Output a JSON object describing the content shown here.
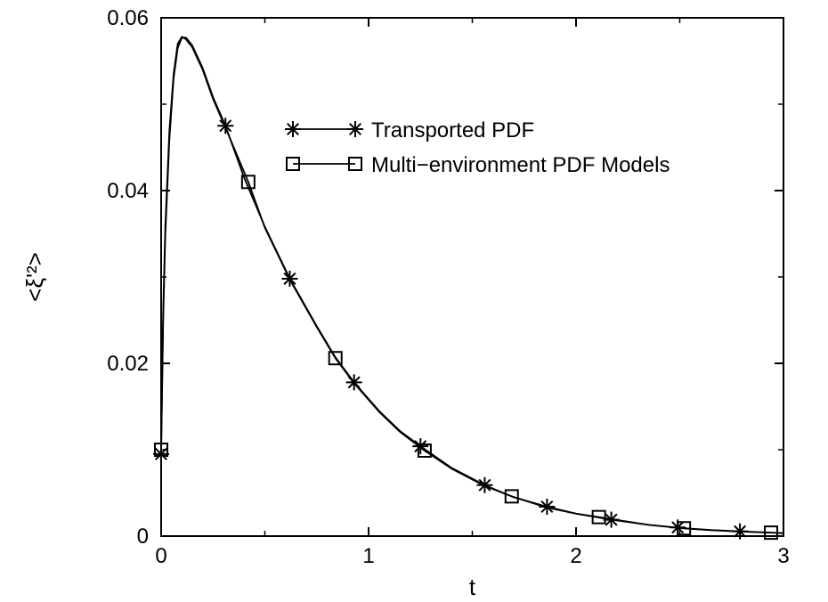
{
  "chart_data": {
    "type": "line",
    "xlabel": "t",
    "ylabel": "<ξ'²>",
    "xlim": [
      0,
      3
    ],
    "ylim": [
      0,
      0.06
    ],
    "x_ticks": [
      0,
      1,
      2,
      3
    ],
    "x_tick_labels": [
      "0",
      "1",
      "2",
      "3"
    ],
    "y_ticks": [
      0,
      0.02,
      0.04,
      0.06
    ],
    "y_tick_labels": [
      "0",
      "0.02",
      "0.04",
      "0.06"
    ],
    "grid": false,
    "legend_position": "upper-right",
    "series": [
      {
        "name": "Transported PDF",
        "marker": "asterisk",
        "color": "#000000",
        "curve": [
          [
            0,
            0.0095
          ],
          [
            0.01,
            0.025
          ],
          [
            0.02,
            0.035
          ],
          [
            0.04,
            0.046
          ],
          [
            0.06,
            0.053
          ],
          [
            0.08,
            0.0565
          ],
          [
            0.1,
            0.0577
          ],
          [
            0.12,
            0.0577
          ],
          [
            0.15,
            0.0568
          ],
          [
            0.2,
            0.0542
          ],
          [
            0.25,
            0.0508
          ],
          [
            0.31,
            0.0475
          ],
          [
            0.4,
            0.0415
          ],
          [
            0.5,
            0.0358
          ],
          [
            0.62,
            0.0298
          ],
          [
            0.75,
            0.0243
          ],
          [
            0.84,
            0.0207
          ],
          [
            0.93,
            0.0178
          ],
          [
            1.05,
            0.0145
          ],
          [
            1.15,
            0.0122
          ],
          [
            1.25,
            0.0104
          ],
          [
            1.4,
            0.0079
          ],
          [
            1.56,
            0.0059
          ],
          [
            1.7,
            0.0045
          ],
          [
            1.86,
            0.0034
          ],
          [
            2.0,
            0.0026
          ],
          [
            2.17,
            0.0019
          ],
          [
            2.35,
            0.0013
          ],
          [
            2.5,
            0.00095
          ],
          [
            2.65,
            0.0007
          ],
          [
            2.79,
            0.00055
          ],
          [
            2.94,
            0.0004
          ],
          [
            3.0,
            0.00035
          ]
        ],
        "markers": [
          [
            0,
            0.0095
          ],
          [
            0.31,
            0.0475
          ],
          [
            0.62,
            0.0298
          ],
          [
            0.93,
            0.0178
          ],
          [
            1.25,
            0.0104
          ],
          [
            1.56,
            0.0059
          ],
          [
            1.86,
            0.0034
          ],
          [
            2.17,
            0.0019
          ],
          [
            2.49,
            0.001
          ],
          [
            2.79,
            0.00055
          ]
        ]
      },
      {
        "name": "Multi−environment PDF Models",
        "marker": "square",
        "color": "#000000",
        "curve": [
          [
            0,
            0.01
          ],
          [
            0.01,
            0.026
          ],
          [
            0.02,
            0.036
          ],
          [
            0.04,
            0.047
          ],
          [
            0.06,
            0.0535
          ],
          [
            0.08,
            0.057
          ],
          [
            0.1,
            0.0578
          ],
          [
            0.12,
            0.0575
          ],
          [
            0.15,
            0.0566
          ],
          [
            0.2,
            0.054
          ],
          [
            0.25,
            0.0506
          ],
          [
            0.31,
            0.0473
          ],
          [
            0.42,
            0.041
          ],
          [
            0.5,
            0.0357
          ],
          [
            0.62,
            0.0297
          ],
          [
            0.75,
            0.0242
          ],
          [
            0.84,
            0.0206
          ],
          [
            0.93,
            0.0177
          ],
          [
            1.05,
            0.0144
          ],
          [
            1.15,
            0.0121
          ],
          [
            1.27,
            0.0099
          ],
          [
            1.4,
            0.0078
          ],
          [
            1.56,
            0.0058
          ],
          [
            1.69,
            0.0046
          ],
          [
            1.86,
            0.0033
          ],
          [
            2.0,
            0.0026
          ],
          [
            2.11,
            0.0022
          ],
          [
            2.35,
            0.0013
          ],
          [
            2.52,
            0.0009
          ],
          [
            2.65,
            0.00068
          ],
          [
            2.8,
            0.00052
          ],
          [
            2.94,
            0.0004
          ],
          [
            3.0,
            0.00033
          ]
        ],
        "markers": [
          [
            0,
            0.01
          ],
          [
            0.42,
            0.041
          ],
          [
            0.84,
            0.0206
          ],
          [
            1.27,
            0.0099
          ],
          [
            1.69,
            0.0046
          ],
          [
            2.11,
            0.0022
          ],
          [
            2.52,
            0.0009
          ],
          [
            2.94,
            0.0004
          ]
        ]
      }
    ]
  }
}
